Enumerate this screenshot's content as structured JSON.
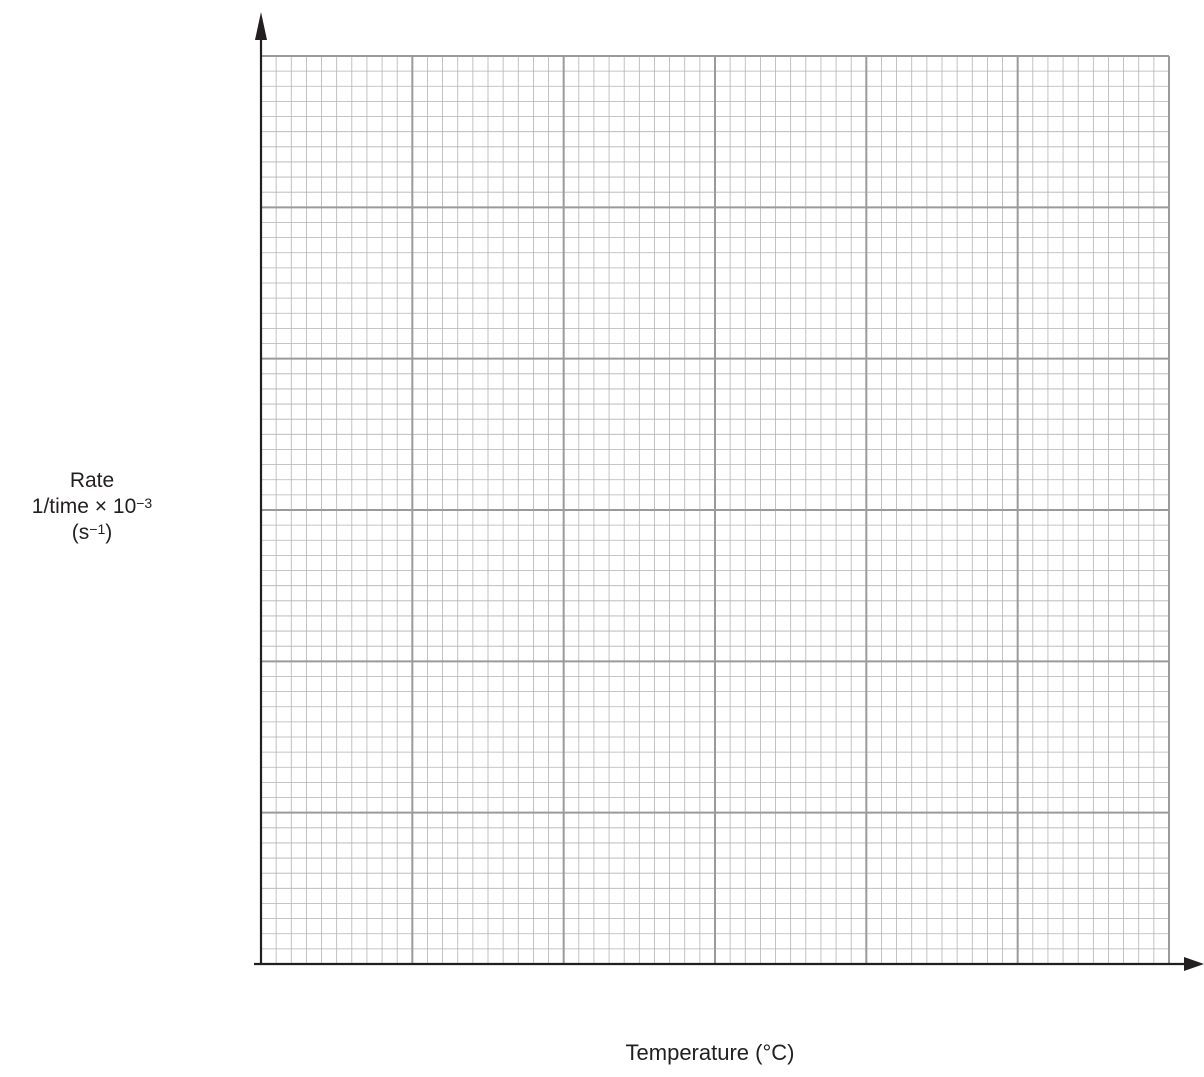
{
  "chart_data": {
    "type": "scatter",
    "title": "",
    "xlabel": "Temperature (°C)",
    "ylabel": [
      "Rate",
      "1/time × 10",
      "(s",
      ")"
    ],
    "ylabel_exponents": [
      "−3",
      "−1"
    ],
    "series": [],
    "grid": {
      "major_columns": 6,
      "major_rows": 6,
      "minor_per_major": 10
    },
    "tick_labels": {
      "x": [],
      "y": []
    },
    "colors": {
      "minor_grid": "#b3b3b3",
      "major_grid": "#9a9a9a",
      "axis": "#231f20",
      "text": "#231f20"
    }
  }
}
